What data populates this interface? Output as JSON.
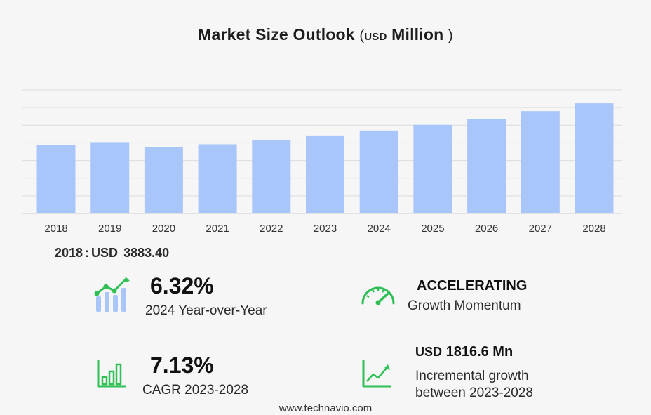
{
  "title": {
    "main": "Market Size Outlook",
    "open_paren": "(",
    "currency": "USD",
    "unit": "Million",
    "close_paren": ")"
  },
  "colors": {
    "bar": "#a9c6fb",
    "grid": "#dcdcdc",
    "icon_green": "#2fbf55",
    "icon_blue": "#a9c6fb"
  },
  "chart_data": {
    "type": "bar",
    "categories": [
      "2018",
      "2019",
      "2020",
      "2021",
      "2022",
      "2023",
      "2024",
      "2025",
      "2026",
      "2027",
      "2028"
    ],
    "values": [
      3883.4,
      4040,
      3750,
      3920,
      4150,
      4420,
      4700,
      5020,
      5370,
      5800,
      6240
    ],
    "ylim": [
      0,
      7000
    ],
    "grid": true,
    "title": "",
    "xlabel": "",
    "ylabel": ""
  },
  "base_stat": {
    "year": "2018",
    "sep": ":",
    "currency": "USD",
    "value": "3883.40"
  },
  "kpis": {
    "yoy": {
      "value": "6.32%",
      "label": "2024 Year-over-Year",
      "icon": "growth-bars-icon"
    },
    "momentum": {
      "value": "ACCELERATING",
      "label": "Growth Momentum",
      "icon": "speedometer-icon"
    },
    "cagr": {
      "value": "7.13%",
      "label": "CAGR 2023-2028",
      "icon": "bar-chart-icon"
    },
    "incremental": {
      "currency": "USD",
      "value": "1816.6 Mn",
      "label_line1": "Incremental growth",
      "label_line2": "between 2023-2028",
      "icon": "trend-line-icon"
    }
  },
  "footer": "www.technavio.com"
}
